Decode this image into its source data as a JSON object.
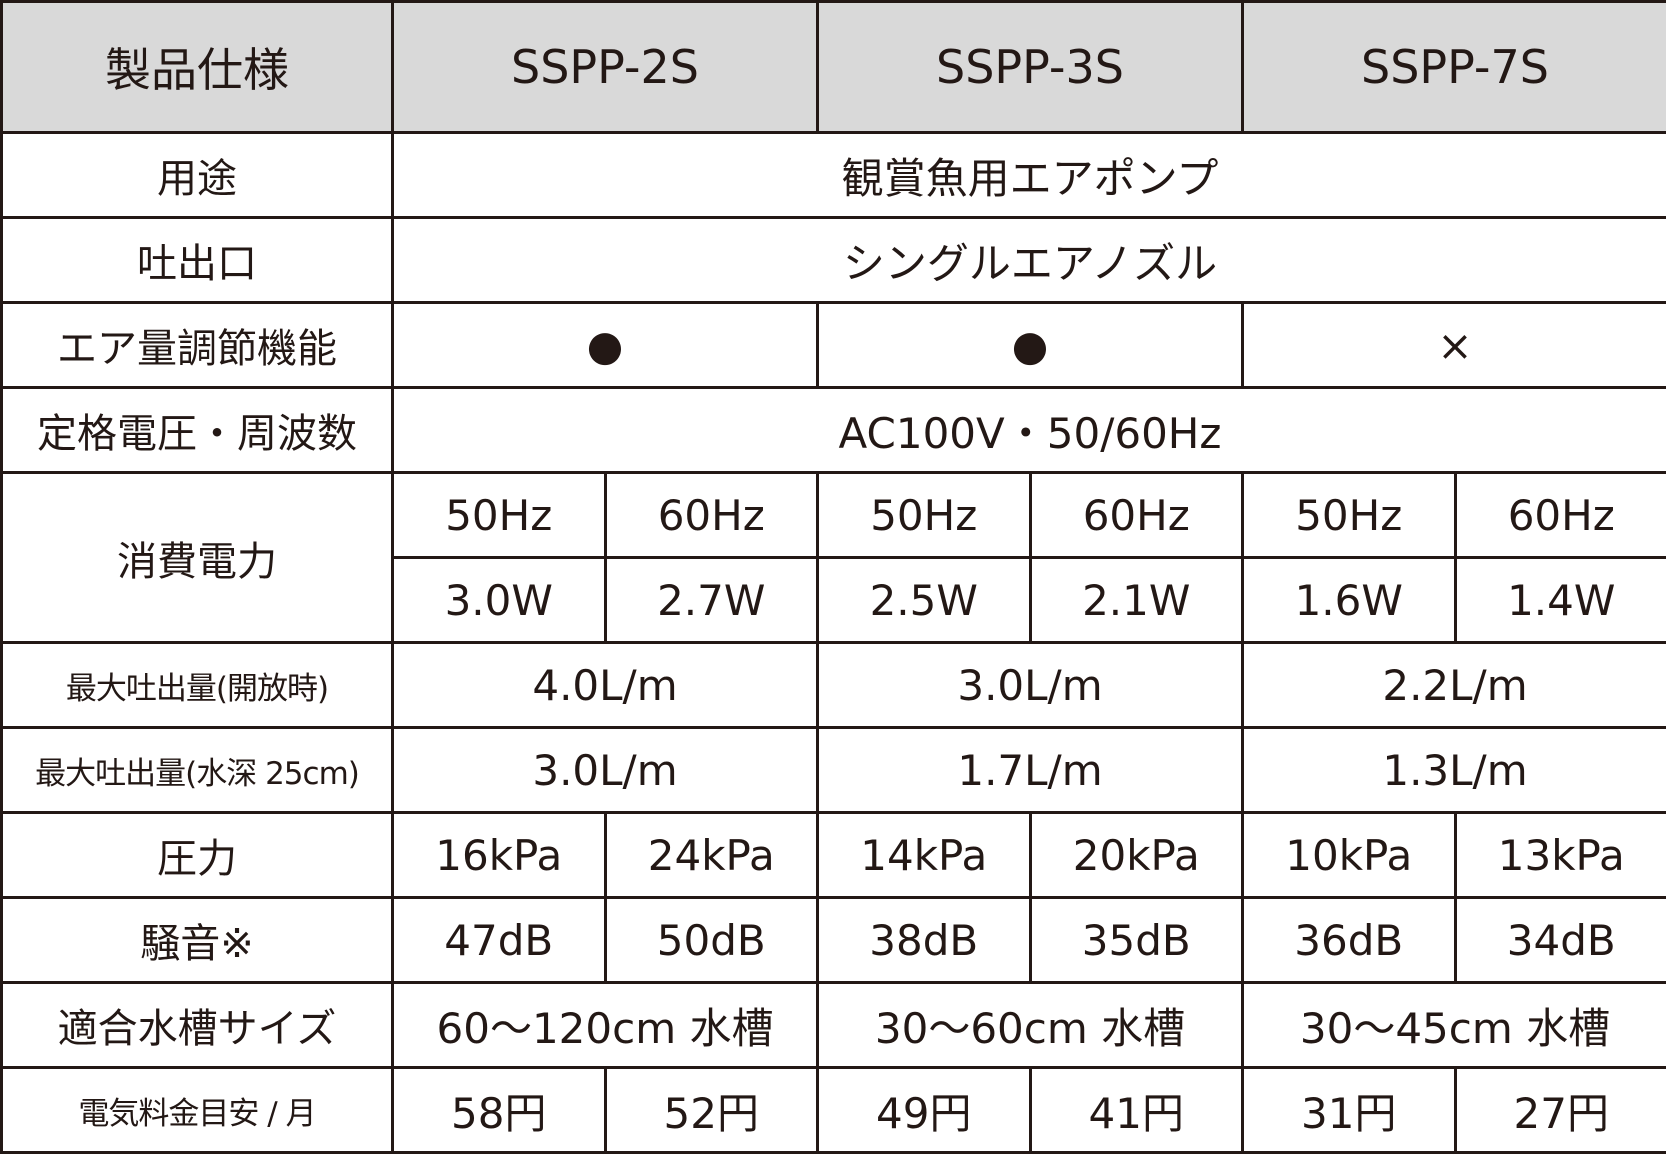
{
  "table": {
    "header": [
      "製品仕様",
      "SSPP-2S",
      "SSPP-3S",
      "SSPP-7S"
    ],
    "rows": [
      {
        "label": "用途",
        "cells": [
          "観賞魚用エアポンプ"
        ]
      },
      {
        "label": "吐出口",
        "cells": [
          "シングルエアノズル"
        ]
      },
      {
        "label": "エア量調節機能",
        "cells": [
          "●",
          "●",
          "×"
        ]
      },
      {
        "label": "定格電圧・周波数",
        "cells": [
          "AC100V・50/60Hz"
        ]
      },
      {
        "label": "消費電力",
        "cells": [
          "50Hz",
          "60Hz",
          "50Hz",
          "60Hz",
          "50Hz",
          "60Hz"
        ],
        "subcells": [
          "3.0W",
          "2.7W",
          "2.5W",
          "2.1W",
          "1.6W",
          "1.4W"
        ]
      },
      {
        "label": "最大吐出量(開放時)",
        "cells": [
          "4.0L/m",
          "3.0L/m",
          "2.2L/m"
        ]
      },
      {
        "label": "最大吐出量(水深 25cm)",
        "cells": [
          "3.0L/m",
          "1.7L/m",
          "1.3L/m"
        ]
      },
      {
        "label": "圧力",
        "cells": [
          "16kPa",
          "24kPa",
          "14kPa",
          "20kPa",
          "10kPa",
          "13kPa"
        ]
      },
      {
        "label": "騒音※",
        "cells": [
          "47dB",
          "50dB",
          "38dB",
          "35dB",
          "36dB",
          "34dB"
        ]
      },
      {
        "label": "適合水槽サイズ",
        "cells": [
          "60～120cm 水槽",
          "30～60cm 水槽",
          "30～45cm 水槽"
        ]
      },
      {
        "label": "電気料金目安 / 月",
        "cells": [
          "58円",
          "52円",
          "49円",
          "41円",
          "31円",
          "27円"
        ]
      }
    ]
  }
}
